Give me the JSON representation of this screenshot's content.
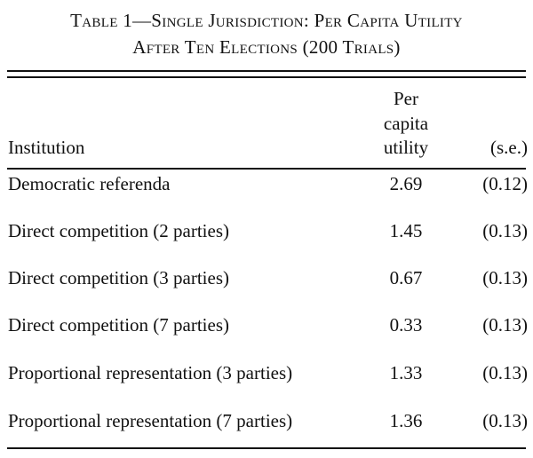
{
  "title": {
    "line1": "Table 1—Single Jurisdiction: Per Capita Utility",
    "line2": "After Ten Elections (200 Trials)"
  },
  "header": {
    "institution": "Institution",
    "per_capita_utility": [
      "Per",
      "capita",
      "utility"
    ],
    "se": "(s.e.)"
  },
  "rows": [
    {
      "institution": "Democratic referenda",
      "utility": "2.69",
      "se": "(0.12)"
    },
    {
      "institution": "Direct competition (2 parties)",
      "utility": "1.45",
      "se": "(0.13)"
    },
    {
      "institution": "Direct competition (3 parties)",
      "utility": "0.67",
      "se": "(0.13)"
    },
    {
      "institution": "Direct competition (7 parties)",
      "utility": "0.33",
      "se": "(0.13)"
    },
    {
      "institution": "Proportional representation (3 parties)",
      "utility": "1.33",
      "se": "(0.13)"
    },
    {
      "institution": "Proportional representation (7 parties)",
      "utility": "1.36",
      "se": "(0.13)"
    }
  ]
}
